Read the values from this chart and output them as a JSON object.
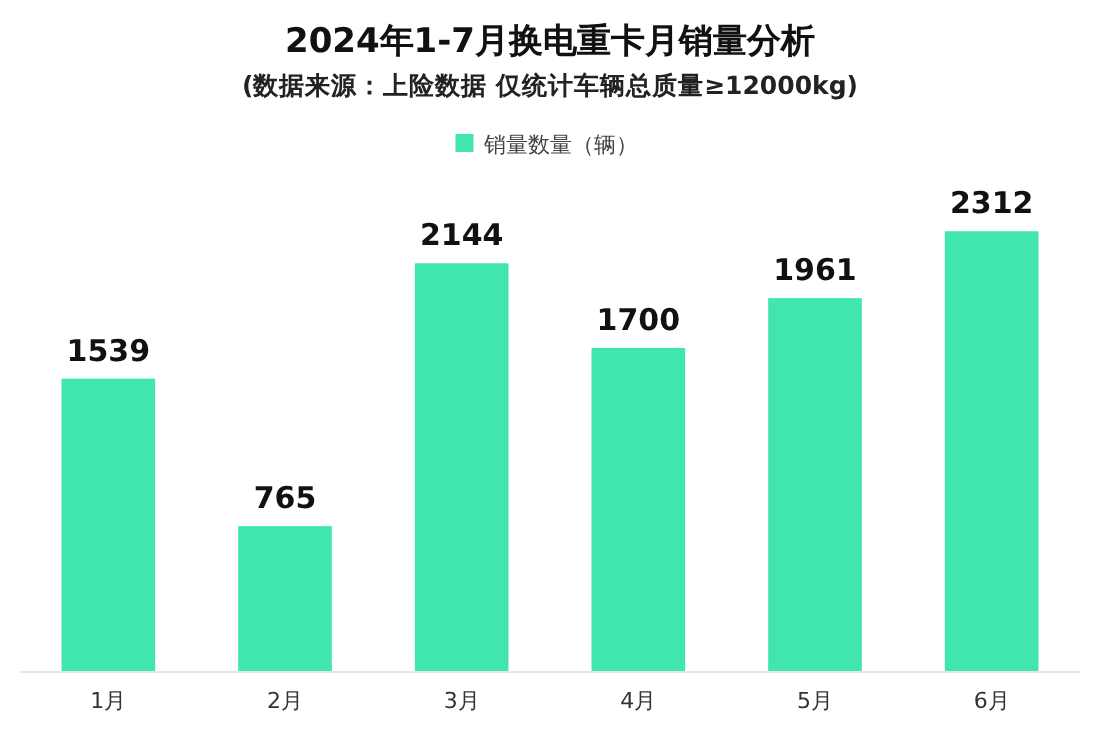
{
  "chart_data": {
    "type": "bar",
    "title": "2024年1-7月换电重卡月销量分析",
    "subtitle": "(数据来源：上险数据 仅统计车辆总质量≥12000kg)",
    "categories": [
      "1月",
      "2月",
      "3月",
      "4月",
      "5月",
      "6月"
    ],
    "series": [
      {
        "name": "销量数量（辆）",
        "color": "#40e6ae",
        "values": [
          1539,
          765,
          2144,
          1700,
          1961,
          2312
        ]
      }
    ],
    "tick_labels": "x",
    "legend": "top",
    "data_labels": true
  }
}
